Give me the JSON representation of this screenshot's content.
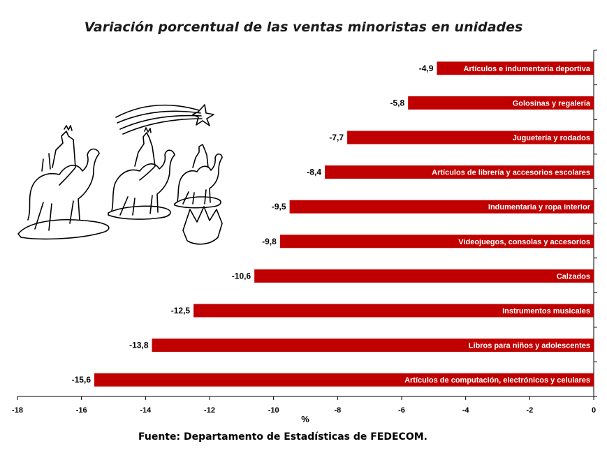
{
  "chart_data": {
    "type": "bar",
    "orientation": "horizontal",
    "title": "Variación porcentual de las ventas minoristas en unidades",
    "xlabel": "%",
    "ylabel": "",
    "xlim": [
      -18,
      0
    ],
    "ticks": [
      -18,
      -16,
      -14,
      -12,
      -10,
      -8,
      -6,
      -4,
      -2,
      0
    ],
    "tick_labels": [
      "-18",
      "-16",
      "-14",
      "-12",
      "-10",
      "-8",
      "-6",
      "-4",
      "-2",
      "0"
    ],
    "bar_color": "#c00000",
    "grid": false,
    "categories": [
      "Artículos e indumentaria deportiva",
      "Golosinas y regalería",
      "Juguetería y rodados",
      "Artículos de librería y accesorios escolares",
      "Indumentaria y ropa interior",
      "Videojuegos, consolas y accesorios",
      "Calzados",
      "Instrumentos musicales",
      "Libros para niños y adolescentes",
      "Artículos de computación, electrónicos y celulares"
    ],
    "values": [
      -4.9,
      -5.8,
      -7.7,
      -8.4,
      -9.5,
      -9.8,
      -10.6,
      -12.5,
      -13.8,
      -15.6
    ],
    "value_labels": [
      "-4,9",
      "-5,8",
      "-7,7",
      "-8,4",
      "-9,5",
      "-9,8",
      "-10,6",
      "-12,5",
      "-13,8",
      "-15,6"
    ]
  },
  "source": "Fuente: Departamento de Estadísticas de FEDECOM.",
  "illustration": {
    "name": "three-wise-men-camels-drawing",
    "star": "shooting-star-icon"
  }
}
